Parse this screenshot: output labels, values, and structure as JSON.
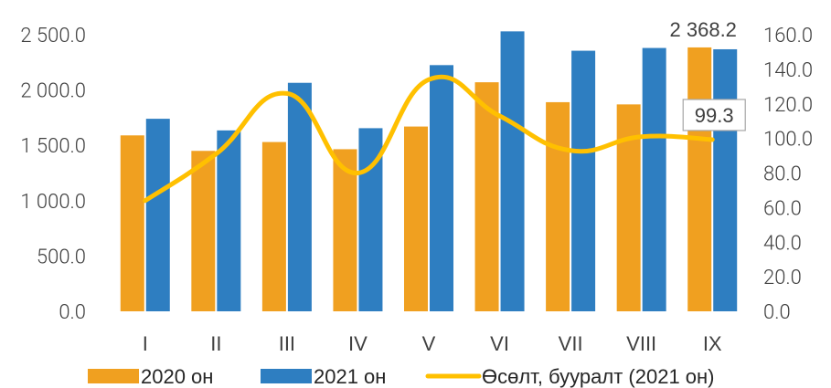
{
  "chart_data": {
    "type": "bar",
    "categories": [
      "I",
      "II",
      "III",
      "IV",
      "V",
      "VI",
      "VII",
      "VIII",
      "IX"
    ],
    "series": [
      {
        "name": "2020 он",
        "kind": "bar",
        "axis": "left",
        "color": "#F0A020",
        "values": [
          1590,
          1450,
          1530,
          1465,
          1670,
          2070,
          1890,
          1870,
          2385
        ]
      },
      {
        "name": "2021 он",
        "kind": "bar",
        "axis": "left",
        "color": "#2E7EC1",
        "values": [
          1740,
          1635,
          2065,
          1655,
          2225,
          2530,
          2355,
          2380,
          2368.2
        ]
      },
      {
        "name": "Өсөлт, бууралт (2021 он)",
        "kind": "line",
        "axis": "right",
        "color": "#FFC000",
        "values": [
          64,
          91,
          126,
          80,
          134,
          113,
          93,
          101,
          99.3
        ]
      }
    ],
    "y_left": {
      "min": 0,
      "max": 2500,
      "step": 500,
      "ticks": [
        "0.0",
        "500.0",
        "1 000.0",
        "1 500.0",
        "2 000.0",
        "2 500.0"
      ]
    },
    "y_right": {
      "min": 0,
      "max": 160,
      "step": 20,
      "ticks": [
        "0.0",
        "20.0",
        "40.0",
        "60.0",
        "80.0",
        "100.0",
        "120.0",
        "140.0",
        "160.0"
      ]
    },
    "data_labels": [
      {
        "series": 1,
        "index": 8,
        "text": "2 368.2",
        "boxed": false
      },
      {
        "series": 2,
        "index": 8,
        "text": "99.3",
        "boxed": true
      }
    ],
    "grid": false,
    "legend_position": "bottom"
  }
}
